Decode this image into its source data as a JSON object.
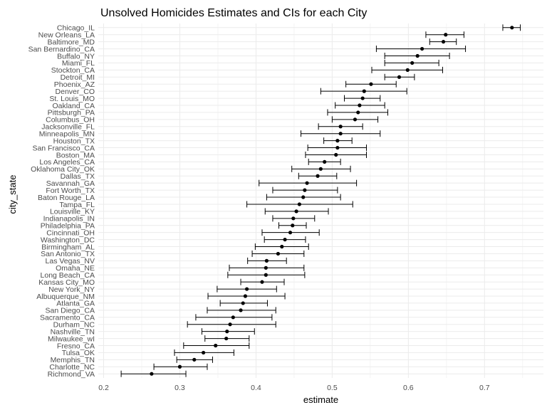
{
  "chart_data": {
    "type": "scatter",
    "title": "Unsolved Homicides Estimates and CIs for each City",
    "xlabel": "estimate",
    "ylabel": "city_state",
    "xlim": [
      0.2,
      0.75
    ],
    "x_ticks": [
      0.2,
      0.3,
      0.4,
      0.5,
      0.6,
      0.7
    ],
    "x_tick_labels": [
      "0.2",
      "0.3",
      "0.4",
      "0.5",
      "0.6",
      "0.7"
    ],
    "grid": true,
    "legend": "none",
    "error_bars": "confidence interval (low, high)",
    "points": [
      {
        "city": "Chicago_IL",
        "estimate": 0.736,
        "low": 0.724,
        "high": 0.747
      },
      {
        "city": "New Orleans_LA",
        "estimate": 0.649,
        "low": 0.623,
        "high": 0.673
      },
      {
        "city": "Baltimore_MD",
        "estimate": 0.646,
        "low": 0.628,
        "high": 0.663
      },
      {
        "city": "San Bernardino_CA",
        "estimate": 0.618,
        "low": 0.558,
        "high": 0.675
      },
      {
        "city": "Buffalo_NY",
        "estimate": 0.612,
        "low": 0.569,
        "high": 0.654
      },
      {
        "city": "Miami_FL",
        "estimate": 0.605,
        "low": 0.569,
        "high": 0.64
      },
      {
        "city": "Stockton_CA",
        "estimate": 0.599,
        "low": 0.552,
        "high": 0.645
      },
      {
        "city": "Detroit_MI",
        "estimate": 0.588,
        "low": 0.569,
        "high": 0.608
      },
      {
        "city": "Phoenix_AZ",
        "estimate": 0.551,
        "low": 0.518,
        "high": 0.584
      },
      {
        "city": "Denver_CO",
        "estimate": 0.542,
        "low": 0.485,
        "high": 0.598
      },
      {
        "city": "St. Louis_MO",
        "estimate": 0.54,
        "low": 0.516,
        "high": 0.563
      },
      {
        "city": "Oakland_CA",
        "estimate": 0.536,
        "low": 0.504,
        "high": 0.569
      },
      {
        "city": "Pittsburgh_PA",
        "estimate": 0.534,
        "low": 0.494,
        "high": 0.573
      },
      {
        "city": "Columbus_OH",
        "estimate": 0.53,
        "low": 0.5,
        "high": 0.56
      },
      {
        "city": "Jacksonville_FL",
        "estimate": 0.511,
        "low": 0.482,
        "high": 0.54
      },
      {
        "city": "Minneapolis_MN",
        "estimate": 0.511,
        "low": 0.459,
        "high": 0.563
      },
      {
        "city": "Houston_TX",
        "estimate": 0.507,
        "low": 0.489,
        "high": 0.526
      },
      {
        "city": "San Francisco_CA",
        "estimate": 0.507,
        "low": 0.468,
        "high": 0.545
      },
      {
        "city": "Boston_MA",
        "estimate": 0.505,
        "low": 0.465,
        "high": 0.545
      },
      {
        "city": "Los Angeles_CA",
        "estimate": 0.49,
        "low": 0.469,
        "high": 0.511
      },
      {
        "city": "Oklahoma City_OK",
        "estimate": 0.485,
        "low": 0.447,
        "high": 0.524
      },
      {
        "city": "Dallas_TX",
        "estimate": 0.481,
        "low": 0.456,
        "high": 0.506
      },
      {
        "city": "Savannah_GA",
        "estimate": 0.467,
        "low": 0.404,
        "high": 0.532
      },
      {
        "city": "Fort Worth_TX",
        "estimate": 0.464,
        "low": 0.422,
        "high": 0.507
      },
      {
        "city": "Baton Rouge_LA",
        "estimate": 0.462,
        "low": 0.414,
        "high": 0.511
      },
      {
        "city": "Tampa_FL",
        "estimate": 0.457,
        "low": 0.388,
        "high": 0.527
      },
      {
        "city": "Louisville_KY",
        "estimate": 0.453,
        "low": 0.412,
        "high": 0.495
      },
      {
        "city": "Indianapolis_IN",
        "estimate": 0.449,
        "low": 0.422,
        "high": 0.477
      },
      {
        "city": "Philadelphia_PA",
        "estimate": 0.448,
        "low": 0.43,
        "high": 0.466
      },
      {
        "city": "Cincinnati_OH",
        "estimate": 0.445,
        "low": 0.408,
        "high": 0.483
      },
      {
        "city": "Washington_DC",
        "estimate": 0.438,
        "low": 0.411,
        "high": 0.465
      },
      {
        "city": "Birmingham_AL",
        "estimate": 0.434,
        "low": 0.399,
        "high": 0.469
      },
      {
        "city": "San Antonio_TX",
        "estimate": 0.429,
        "low": 0.395,
        "high": 0.463
      },
      {
        "city": "Las Vegas_NV",
        "estimate": 0.414,
        "low": 0.389,
        "high": 0.44
      },
      {
        "city": "Omaha_NE",
        "estimate": 0.413,
        "low": 0.365,
        "high": 0.463
      },
      {
        "city": "Long Beach_CA",
        "estimate": 0.413,
        "low": 0.363,
        "high": 0.464
      },
      {
        "city": "Kansas City_MO",
        "estimate": 0.408,
        "low": 0.38,
        "high": 0.437
      },
      {
        "city": "New York_NY",
        "estimate": 0.388,
        "low": 0.349,
        "high": 0.427
      },
      {
        "city": "Albuquerque_NM",
        "estimate": 0.386,
        "low": 0.337,
        "high": 0.438
      },
      {
        "city": "Atlanta_GA",
        "estimate": 0.383,
        "low": 0.353,
        "high": 0.415
      },
      {
        "city": "San Diego_CA",
        "estimate": 0.38,
        "low": 0.336,
        "high": 0.426
      },
      {
        "city": "Sacramento_CA",
        "estimate": 0.37,
        "low": 0.321,
        "high": 0.421
      },
      {
        "city": "Durham_NC",
        "estimate": 0.366,
        "low": 0.31,
        "high": 0.426
      },
      {
        "city": "Nashville_TN",
        "estimate": 0.362,
        "low": 0.329,
        "high": 0.398
      },
      {
        "city": "Milwaukee_wI",
        "estimate": 0.361,
        "low": 0.333,
        "high": 0.391
      },
      {
        "city": "Fresno_CA",
        "estimate": 0.347,
        "low": 0.305,
        "high": 0.391
      },
      {
        "city": "Tulsa_OK",
        "estimate": 0.331,
        "low": 0.293,
        "high": 0.371
      },
      {
        "city": "Memphis_TN",
        "estimate": 0.319,
        "low": 0.296,
        "high": 0.343
      },
      {
        "city": "Charlotte_NC",
        "estimate": 0.3,
        "low": 0.266,
        "high": 0.336
      },
      {
        "city": "Richmond_VA",
        "estimate": 0.263,
        "low": 0.223,
        "high": 0.308
      }
    ]
  }
}
